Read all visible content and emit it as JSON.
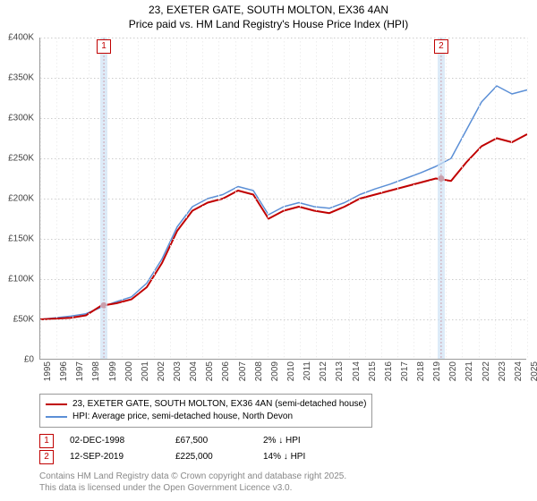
{
  "title_line1": "23, EXETER GATE, SOUTH MOLTON, EX36 4AN",
  "title_line2": "Price paid vs. HM Land Registry's House Price Index (HPI)",
  "chart": {
    "type": "line",
    "ylim": [
      0,
      400000
    ],
    "ytick_step": 50000,
    "yticks": [
      "£0",
      "£50K",
      "£100K",
      "£150K",
      "£200K",
      "£250K",
      "£300K",
      "£350K",
      "£400K"
    ],
    "x_years": [
      1995,
      1996,
      1997,
      1998,
      1999,
      2000,
      2001,
      2002,
      2003,
      2004,
      2005,
      2006,
      2007,
      2008,
      2009,
      2010,
      2011,
      2012,
      2013,
      2014,
      2015,
      2016,
      2017,
      2018,
      2019,
      2020,
      2021,
      2022,
      2023,
      2024,
      2025
    ],
    "background_color": "#ffffff",
    "grid_color": "#cccccc",
    "series": {
      "price_paid": {
        "color": "#c00000",
        "width": 2,
        "label": "23, EXETER GATE, SOUTH MOLTON, EX36 4AN (semi-detached house)",
        "values": [
          50,
          51,
          52,
          55,
          67,
          70,
          75,
          90,
          120,
          160,
          185,
          195,
          200,
          210,
          205,
          175,
          185,
          190,
          185,
          182,
          190,
          200,
          205,
          210,
          215,
          220,
          225,
          222,
          245,
          265,
          275,
          270,
          280
        ]
      },
      "hpi": {
        "color": "#5b8fd6",
        "width": 1.5,
        "label": "HPI: Average price, semi-detached house, North Devon",
        "values": [
          50,
          52,
          54,
          57,
          65,
          72,
          78,
          95,
          125,
          165,
          190,
          200,
          205,
          215,
          210,
          180,
          190,
          195,
          190,
          188,
          195,
          205,
          212,
          218,
          225,
          232,
          240,
          250,
          285,
          320,
          340,
          330,
          335
        ]
      }
    },
    "sale_band_color": "#cfe3f5",
    "sales": [
      {
        "idx": "1",
        "year": 1998.92,
        "date": "02-DEC-1998",
        "price": "£67,500",
        "diff": "2% ↓ HPI"
      },
      {
        "idx": "2",
        "year": 2019.7,
        "date": "12-SEP-2019",
        "price": "£225,000",
        "diff": "14% ↓ HPI"
      }
    ]
  },
  "attribution_line1": "Contains HM Land Registry data © Crown copyright and database right 2025.",
  "attribution_line2": "This data is licensed under the Open Government Licence v3.0."
}
